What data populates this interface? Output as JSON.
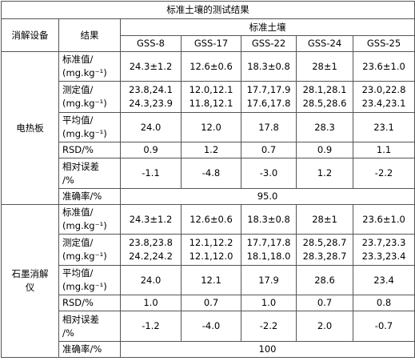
{
  "table": {
    "title": "标准土壤的测试结果",
    "header": {
      "device": "消解设备",
      "result": "结果",
      "soil": "标准土壤",
      "samples": [
        "GSS-8",
        "GSS-17",
        "GSS-22",
        "GSS-24",
        "GSS-25"
      ]
    },
    "groups": [
      {
        "device": [
          "电热板"
        ],
        "rows": [
          {
            "label": [
              "标准值/",
              "(mg.kg⁻¹)"
            ],
            "cells": [
              [
                "24.3±1.2"
              ],
              [
                "12.6±0.6"
              ],
              [
                "18.3±0.8"
              ],
              [
                "28±1"
              ],
              [
                "23.6±1.0"
              ]
            ]
          },
          {
            "label": [
              "测定值/",
              "(mg.kg⁻¹)"
            ],
            "cells": [
              [
                "23.8,24.1",
                "24.3,23.9"
              ],
              [
                "12.0,12.1",
                "11.8,12.1"
              ],
              [
                "17.7,17.9",
                "17.6,17.8"
              ],
              [
                "28.1,28.1",
                "28.5,28.6"
              ],
              [
                "23.0,22.8",
                "23.4,23.1"
              ]
            ]
          },
          {
            "label": [
              "平均值/",
              "(mg.kg⁻¹)"
            ],
            "cells": [
              [
                "24.0"
              ],
              [
                "12.0"
              ],
              [
                "17.8"
              ],
              [
                "28.3"
              ],
              [
                "23.1"
              ]
            ]
          },
          {
            "label": [
              "RSD/%"
            ],
            "cells": [
              [
                "0.9"
              ],
              [
                "1.2"
              ],
              [
                "0.7"
              ],
              [
                "0.9"
              ],
              [
                "1.1"
              ]
            ]
          },
          {
            "label": [
              "相对误差",
              "/%"
            ],
            "cells": [
              [
                "-1.1"
              ],
              [
                "-4.8"
              ],
              [
                "-3.0"
              ],
              [
                "1.2"
              ],
              [
                "-2.2"
              ]
            ]
          },
          {
            "label": [
              "准确率/%"
            ],
            "merged": [
              "95.0"
            ]
          }
        ]
      },
      {
        "device": [
          "石墨消解",
          "仪"
        ],
        "rows": [
          {
            "label": [
              "标准值/",
              "(mg.kg⁻¹)"
            ],
            "cells": [
              [
                "24.3±1.2"
              ],
              [
                "12.6±0.6"
              ],
              [
                "18.3±0.8"
              ],
              [
                "28±1"
              ],
              [
                "23.6±1.0"
              ]
            ]
          },
          {
            "label": [
              "测定值/",
              "(mg.kg⁻¹)"
            ],
            "cells": [
              [
                "23.8,23.8",
                "24.2,24.2"
              ],
              [
                "12.1,12.2",
                "12.1,12.0"
              ],
              [
                "17.7,17.8",
                "18.1,18.0"
              ],
              [
                "28.5,28.7",
                "28.3,28.7"
              ],
              [
                "23.7,23.3",
                "23.3,23.4"
              ]
            ]
          },
          {
            "label": [
              "平均值/",
              "(mg.kg⁻¹)"
            ],
            "cells": [
              [
                "24.0"
              ],
              [
                "12.1"
              ],
              [
                "17.9"
              ],
              [
                "28.6"
              ],
              [
                "23.4"
              ]
            ]
          },
          {
            "label": [
              "RSD/%"
            ],
            "cells": [
              [
                "1.0"
              ],
              [
                "0.7"
              ],
              [
                "1.0"
              ],
              [
                "0.7"
              ],
              [
                "0.8"
              ]
            ]
          },
          {
            "label": [
              "相对误差",
              "/%"
            ],
            "cells": [
              [
                "-1.2"
              ],
              [
                "-4.0"
              ],
              [
                "-2.2"
              ],
              [
                "2.0"
              ],
              [
                "-0.7"
              ]
            ]
          },
          {
            "label": [
              "准确率/%"
            ],
            "merged": [
              "100"
            ]
          }
        ]
      }
    ]
  }
}
